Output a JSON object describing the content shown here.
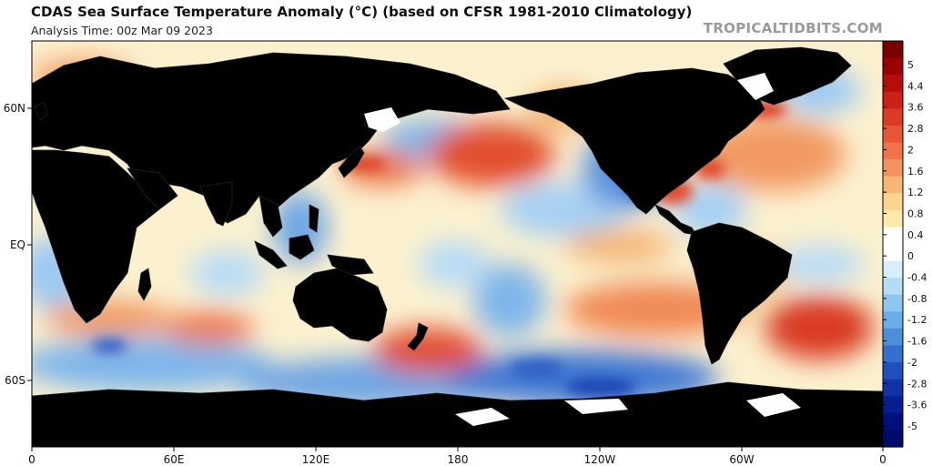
{
  "title": "CDAS Sea Surface Temperature Anomaly (°C) (based on CFSR 1981-2010 Climatology)",
  "subtitle": "Analysis Time: 00z Mar 09 2023",
  "credit": "TROPICALTIDBITS.COM",
  "map": {
    "lat_labels": [
      "60N",
      "EQ",
      "60S"
    ],
    "lon_labels": [
      "0",
      "60E",
      "120E",
      "180",
      "120W",
      "60W",
      "0"
    ],
    "land_color": "#c0c0c0",
    "ice_color": "#ffffff"
  },
  "colorbar": {
    "labels": [
      "5",
      "4.4",
      "3.6",
      "2.8",
      "2",
      "1.6",
      "1.2",
      "0.8",
      "0.4",
      "0",
      "-0.4",
      "-0.8",
      "-1.2",
      "-1.6",
      "-2",
      "-2.8",
      "-3.6",
      "-5"
    ],
    "colors": [
      "#7a0000",
      "#9c0000",
      "#b80c0c",
      "#cc1f1a",
      "#dc3a26",
      "#e75637",
      "#ef7449",
      "#f4935d",
      "#f7b676",
      "#f9d58f",
      "#fbeaac",
      "#ffffff",
      "#ffffff",
      "#d9eefb",
      "#b4dcf6",
      "#8ec6ef",
      "#69ace6",
      "#4b8fdc",
      "#346fcf",
      "#2050bf",
      "#1233a8",
      "#071d92",
      "#00107d",
      "#000a6a"
    ]
  }
}
